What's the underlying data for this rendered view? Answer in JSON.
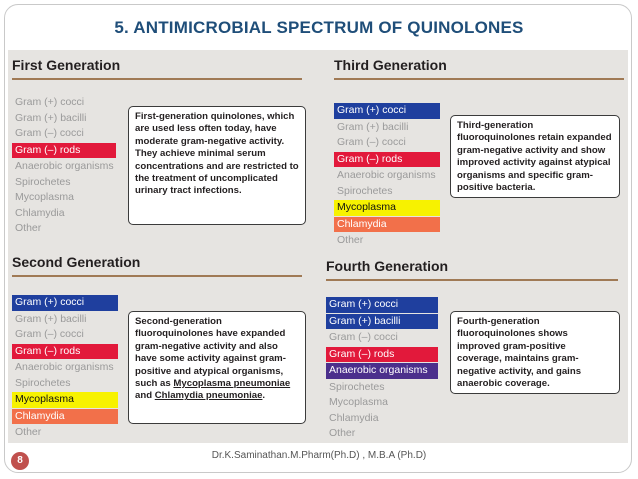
{
  "slide": {
    "title": "5. ANTIMICROBIAL SPECTRUM OF QUINOLONES",
    "page_number": "8",
    "footer": "Dr.K.Saminathan.M.Pharm(Ph.D) , M.B.A (Ph.D)"
  },
  "colors": {
    "blue": "#1f3f9e",
    "red": "#e2193b",
    "yellow": "#f7f200",
    "orange": "#f2704a",
    "purple": "#4b2f8c"
  },
  "generations": [
    {
      "title": "First Generation",
      "items": [
        {
          "label": "Gram (+) cocci",
          "hl": ""
        },
        {
          "label": "Gram (+) bacilli",
          "hl": ""
        },
        {
          "label": "Gram (–) cocci",
          "hl": ""
        },
        {
          "label": "Gram (–) rods",
          "hl": "red"
        },
        {
          "label": "Anaerobic organisms",
          "hl": ""
        },
        {
          "label": "Spirochetes",
          "hl": ""
        },
        {
          "label": "Mycoplasma",
          "hl": ""
        },
        {
          "label": "Chlamydia",
          "hl": ""
        },
        {
          "label": "Other",
          "hl": ""
        }
      ],
      "description": "First-generation quinolones, which are used less often today, have moderate gram-negative activity. They achieve minimal serum concentrations and are restricted to the treatment of uncomplicated urinary tract infections."
    },
    {
      "title": "Third Generation",
      "items": [
        {
          "label": "Gram (+) cocci",
          "hl": "blue"
        },
        {
          "label": "Gram (+) bacilli",
          "hl": ""
        },
        {
          "label": "Gram (–) cocci",
          "hl": ""
        },
        {
          "label": "Gram (–) rods",
          "hl": "red"
        },
        {
          "label": "Anaerobic organisms",
          "hl": ""
        },
        {
          "label": "Spirochetes",
          "hl": ""
        },
        {
          "label": "Mycoplasma",
          "hl": "yellow"
        },
        {
          "label": "Chlamydia",
          "hl": "orange"
        },
        {
          "label": "Other",
          "hl": ""
        }
      ],
      "description": "Third-generation fluoroquinolones retain expanded gram-negative activity and show improved activity against atypical organisms and specific gram-positive bacteria."
    },
    {
      "title": "Second Generation",
      "items": [
        {
          "label": "Gram (+) cocci",
          "hl": "blue"
        },
        {
          "label": "Gram (+) bacilli",
          "hl": ""
        },
        {
          "label": "Gram (–) cocci",
          "hl": ""
        },
        {
          "label": "Gram (–) rods",
          "hl": "red"
        },
        {
          "label": "Anaerobic organisms",
          "hl": ""
        },
        {
          "label": "Spirochetes",
          "hl": ""
        },
        {
          "label": "Mycoplasma",
          "hl": "yellow"
        },
        {
          "label": "Chlamydia",
          "hl": "orange"
        },
        {
          "label": "Other",
          "hl": ""
        }
      ],
      "description_parts": [
        {
          "text": "Second-generation fluoroquinolones have expanded gram-negative activity and also have some activity against gram-positive and atypical organisms, such as ",
          "u": false
        },
        {
          "text": "Mycoplasma pneumoniae",
          "u": true
        },
        {
          "text": " and ",
          "u": false
        },
        {
          "text": "Chlamydia pneumoniae",
          "u": true
        },
        {
          "text": ".",
          "u": false
        }
      ]
    },
    {
      "title": "Fourth Generation",
      "items": [
        {
          "label": "Gram (+) cocci",
          "hl": "blue"
        },
        {
          "label": "Gram (+) bacilli",
          "hl": "blue"
        },
        {
          "label": "Gram (–) cocci",
          "hl": ""
        },
        {
          "label": "Gram (–) rods",
          "hl": "red"
        },
        {
          "label": "Anaerobic organisms",
          "hl": "purple"
        },
        {
          "label": "Spirochetes",
          "hl": ""
        },
        {
          "label": "Mycoplasma",
          "hl": ""
        },
        {
          "label": "Chlamydia",
          "hl": ""
        },
        {
          "label": "Other",
          "hl": ""
        }
      ],
      "description": "Fourth-generation fluoroquinolones shows improved gram-positive coverage, maintains gram-negative activity, and gains anaerobic coverage."
    }
  ]
}
